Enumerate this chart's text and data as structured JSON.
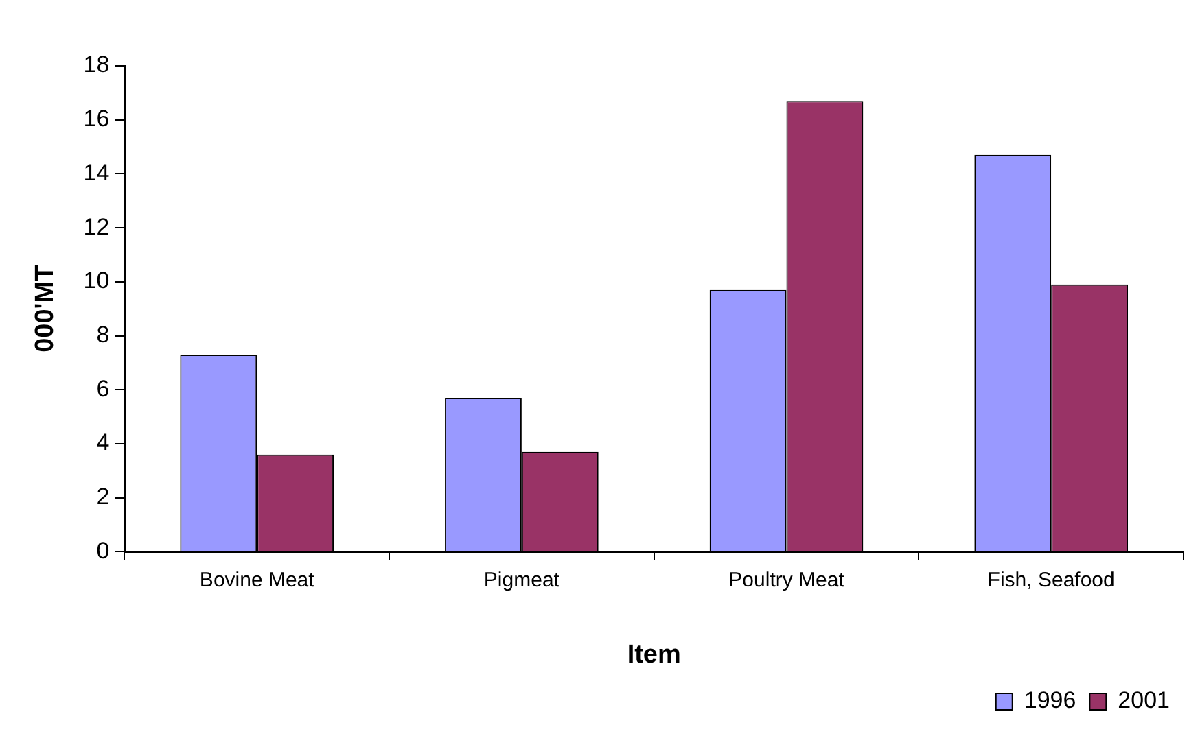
{
  "chart_data": {
    "type": "bar",
    "xlabel": "Item",
    "ylabel": "000'MT",
    "categories": [
      "Bovine Meat",
      "Pigmeat",
      "Poultry Meat",
      "Fish, Seafood"
    ],
    "series": [
      {
        "name": "1996",
        "color": "#9999ff",
        "values": [
          7.3,
          5.7,
          9.7,
          14.7
        ]
      },
      {
        "name": "2001",
        "color": "#993366",
        "values": [
          3.6,
          3.7,
          16.7,
          9.9
        ]
      }
    ],
    "ylim": [
      0,
      18
    ],
    "yticks": [
      0,
      2,
      4,
      6,
      8,
      10,
      12,
      14,
      16,
      18
    ],
    "grid": false,
    "legend": "bottom right"
  }
}
